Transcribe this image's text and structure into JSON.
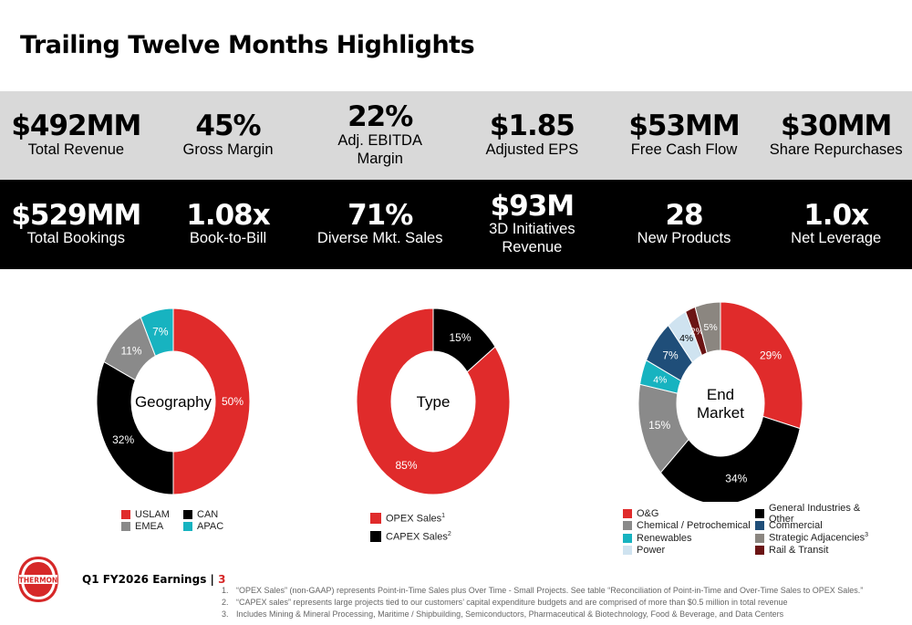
{
  "title": "Trailing Twelve Months Highlights",
  "metrics_top": [
    {
      "value": "$492MM",
      "label": "Total Revenue"
    },
    {
      "value": "45%",
      "label": "Gross Margin"
    },
    {
      "value": "22%",
      "label": "Adj. EBITDA\nMargin"
    },
    {
      "value": "$1.85",
      "label": "Adjusted EPS"
    },
    {
      "value": "$53MM",
      "label": "Free Cash Flow"
    },
    {
      "value": "$30MM",
      "label": "Share Repurchases"
    }
  ],
  "metrics_bottom": [
    {
      "value": "$529MM",
      "label": "Total Bookings"
    },
    {
      "value": "1.08x",
      "label": "Book-to-Bill"
    },
    {
      "value": "71%",
      "label": "Diverse Mkt. Sales"
    },
    {
      "value": "$93M",
      "label": "3D Initiatives\nRevenue"
    },
    {
      "value": "28",
      "label": "New Products"
    },
    {
      "value": "1.0x",
      "label": "Net Leverage"
    }
  ],
  "colors": {
    "red": "#e02b2b",
    "black": "#000000",
    "gray": "#8a8a8a",
    "teal": "#17b3c0",
    "navy": "#1f4e79",
    "lightblue": "#cfe3f0",
    "taupe": "#8b8680",
    "maroon": "#6b1414"
  },
  "chart_data": [
    {
      "type": "pie",
      "title": "Geography",
      "slices": [
        {
          "name": "USLAM",
          "value": 50,
          "label": "50%",
          "color": "#e02b2b"
        },
        {
          "name": "CAN",
          "value": 32,
          "label": "32%",
          "color": "#000000"
        },
        {
          "name": "EMEA",
          "value": 11,
          "label": "11%",
          "color": "#8a8a8a"
        },
        {
          "name": "APAC",
          "value": 7,
          "label": "7%",
          "color": "#17b3c0"
        }
      ],
      "legend": [
        {
          "name": "USLAM",
          "color": "#e02b2b",
          "sup": ""
        },
        {
          "name": "CAN",
          "color": "#000000",
          "sup": ""
        },
        {
          "name": "EMEA",
          "color": "#8a8a8a",
          "sup": ""
        },
        {
          "name": "APAC",
          "color": "#17b3c0",
          "sup": ""
        }
      ]
    },
    {
      "type": "pie",
      "title": "Type",
      "slices": [
        {
          "name": "OPEX Sales",
          "value": 85,
          "label": "85%",
          "color": "#e02b2b"
        },
        {
          "name": "CAPEX Sales",
          "value": 15,
          "label": "15%",
          "color": "#000000"
        }
      ],
      "legend": [
        {
          "name": "OPEX Sales",
          "color": "#e02b2b",
          "sup": "1"
        },
        {
          "name": "CAPEX Sales",
          "color": "#000000",
          "sup": "2"
        }
      ]
    },
    {
      "type": "pie",
      "title": "End\nMarket",
      "slices": [
        {
          "name": "O&G",
          "value": 29,
          "label": "29%",
          "color": "#e02b2b"
        },
        {
          "name": "General Industries & Other",
          "value": 34,
          "label": "34%",
          "color": "#000000"
        },
        {
          "name": "Chemical / Petrochemical",
          "value": 15,
          "label": "15%",
          "color": "#8a8a8a"
        },
        {
          "name": "Renewables",
          "value": 4,
          "label": "4%",
          "color": "#17b3c0"
        },
        {
          "name": "Commercial",
          "value": 7,
          "label": "7%",
          "color": "#1f4e79"
        },
        {
          "name": "Power",
          "value": 4,
          "label": "4%",
          "color": "#cfe3f0"
        },
        {
          "name": "Rail & Transit",
          "value": 2,
          "label": "2%",
          "color": "#6b1414"
        },
        {
          "name": "Strategic Adjacencies",
          "value": 5,
          "label": "5%",
          "color": "#8b8680"
        }
      ],
      "legend": [
        {
          "name": "O&G",
          "color": "#e02b2b",
          "sup": ""
        },
        {
          "name": "General Industries & Other",
          "color": "#000000",
          "sup": ""
        },
        {
          "name": "Chemical / Petrochemical",
          "color": "#8a8a8a",
          "sup": ""
        },
        {
          "name": "Commercial",
          "color": "#1f4e79",
          "sup": ""
        },
        {
          "name": "Renewables",
          "color": "#17b3c0",
          "sup": ""
        },
        {
          "name": "Strategic Adjacencies",
          "color": "#8b8680",
          "sup": "3"
        },
        {
          "name": "Power",
          "color": "#cfe3f0",
          "sup": ""
        },
        {
          "name": "Rail & Transit",
          "color": "#6b1414",
          "sup": ""
        }
      ]
    }
  ],
  "footer": {
    "logo_text": "THERMON",
    "earnings_label": "Q1 FY2026 Earnings | ",
    "page_number": "3"
  },
  "footnotes": [
    {
      "num": "1.",
      "text": "“OPEX Sales” (non-GAAP) represents Point-in-Time Sales plus Over Time - Small Projects. See table “Reconciliation of Point-in-Time and Over-Time Sales to OPEX Sales.”"
    },
    {
      "num": "2.",
      "text": "“CAPEX sales” represents large projects tied to our customers’ capital expenditure budgets and are comprised of more than $0.5 million in total revenue"
    },
    {
      "num": "3.",
      "text": "Includes Mining & Mineral Processing, Maritime / Shipbuilding, Semiconductors, Pharmaceutical & Biotechnology, Food & Beverage, and Data Centers"
    }
  ]
}
